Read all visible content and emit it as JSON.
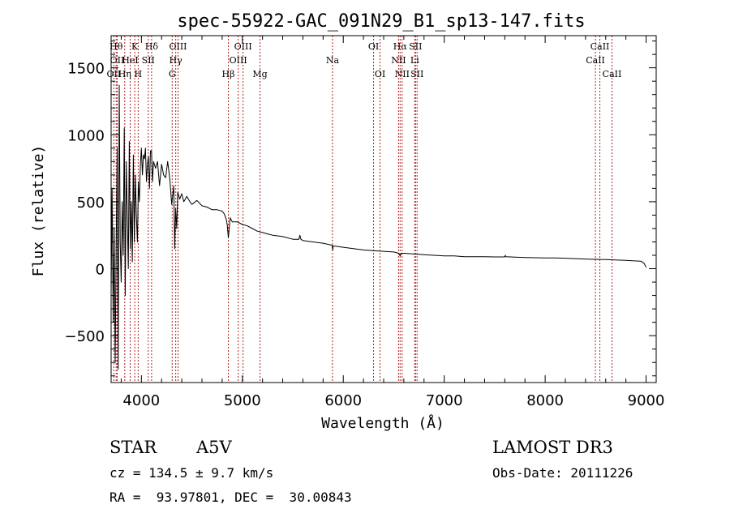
{
  "chart_data": {
    "type": "line",
    "title": "spec-55922-GAC_091N29_B1_sp13-147.fits",
    "xlabel": "Wavelength (Å)",
    "ylabel": "Flux (relative)",
    "xlim": [
      3700,
      9100
    ],
    "ylim": [
      -850,
      1740
    ],
    "xticks": [
      4000,
      5000,
      6000,
      7000,
      8000,
      9000
    ],
    "xtick_labels": [
      "4000",
      "5000",
      "6000",
      "7000",
      "8000",
      "9000"
    ],
    "yticks": [
      -500,
      0,
      500,
      1000,
      1500
    ],
    "ytick_labels": [
      "−500",
      "0",
      "500",
      "1000",
      "1500"
    ],
    "grid": false,
    "series": [
      {
        "name": "spectrum",
        "x": [
          3700,
          3710,
          3720,
          3730,
          3740,
          3750,
          3760,
          3770,
          3780,
          3790,
          3800,
          3810,
          3820,
          3830,
          3840,
          3850,
          3860,
          3870,
          3880,
          3890,
          3900,
          3910,
          3920,
          3930,
          3940,
          3950,
          3960,
          3970,
          3980,
          3990,
          4000,
          4010,
          4020,
          4030,
          4040,
          4050,
          4060,
          4070,
          4080,
          4090,
          4100,
          4110,
          4120,
          4140,
          4160,
          4180,
          4200,
          4220,
          4240,
          4260,
          4280,
          4300,
          4320,
          4330,
          4340,
          4350,
          4360,
          4380,
          4400,
          4420,
          4450,
          4480,
          4500,
          4550,
          4600,
          4650,
          4700,
          4750,
          4800,
          4820,
          4840,
          4850,
          4861,
          4870,
          4880,
          4900,
          4950,
          5000,
          5050,
          5100,
          5150,
          5200,
          5250,
          5300,
          5400,
          5500,
          5560,
          5570,
          5580,
          5600,
          5700,
          5800,
          5890,
          5895,
          5900,
          6000,
          6100,
          6200,
          6300,
          6400,
          6500,
          6550,
          6563,
          6575,
          6600,
          6700,
          6800,
          6900,
          7000,
          7100,
          7200,
          7300,
          7400,
          7500,
          7600,
          7605,
          7610,
          7700,
          7800,
          7900,
          8000,
          8100,
          8200,
          8300,
          8400,
          8500,
          8600,
          8700,
          8800,
          8900,
          8950,
          8980,
          9000
        ],
        "values": [
          -180,
          600,
          -400,
          300,
          -700,
          150,
          900,
          -750,
          1370,
          200,
          -100,
          500,
          100,
          1050,
          -200,
          800,
          400,
          0,
          950,
          150,
          500,
          50,
          850,
          200,
          700,
          400,
          200,
          650,
          500,
          780,
          900,
          700,
          850,
          820,
          900,
          650,
          780,
          840,
          600,
          880,
          880,
          650,
          800,
          750,
          800,
          620,
          780,
          700,
          680,
          800,
          680,
          480,
          620,
          150,
          450,
          300,
          570,
          520,
          560,
          500,
          540,
          500,
          480,
          510,
          470,
          460,
          440,
          440,
          430,
          410,
          370,
          330,
          230,
          300,
          380,
          350,
          350,
          330,
          320,
          300,
          280,
          270,
          260,
          250,
          240,
          220,
          220,
          250,
          220,
          210,
          200,
          190,
          175,
          140,
          170,
          160,
          150,
          140,
          135,
          130,
          125,
          115,
          95,
          115,
          115,
          110,
          105,
          100,
          95,
          95,
          90,
          90,
          90,
          88,
          88,
          100,
          90,
          86,
          84,
          82,
          80,
          80,
          78,
          75,
          72,
          70,
          68,
          65,
          62,
          58,
          56,
          40,
          10
        ]
      }
    ],
    "lines": [
      {
        "name": "OII",
        "x": 3727,
        "row": 3
      },
      {
        "name": "Hθ",
        "x": 3750,
        "row": 1
      },
      {
        "name": "OII",
        "x": 3760,
        "row": 2
      },
      {
        "name": "Hη",
        "x": 3835,
        "row": 3
      },
      {
        "name": "HeI",
        "x": 3889,
        "row": 2
      },
      {
        "name": "K",
        "x": 3934,
        "row": 1
      },
      {
        "name": "H",
        "x": 3968,
        "row": 3
      },
      {
        "name": "SII",
        "x": 4068,
        "row": 2
      },
      {
        "name": "Hδ",
        "x": 4101,
        "row": 1
      },
      {
        "name": "G",
        "x": 4305,
        "row": 3
      },
      {
        "name": "Hγ",
        "x": 4340,
        "row": 2
      },
      {
        "name": "OIII",
        "x": 4363,
        "row": 1
      },
      {
        "name": "Hβ",
        "x": 4861,
        "row": 3
      },
      {
        "name": "OIII",
        "x": 4959,
        "row": 2
      },
      {
        "name": "OIII",
        "x": 5007,
        "row": 1
      },
      {
        "name": "Mg",
        "x": 5175,
        "row": 3
      },
      {
        "name": "Na",
        "x": 5893,
        "row": 2
      },
      {
        "name": "OI",
        "x": 6300,
        "row": 1
      },
      {
        "name": "OI",
        "x": 6364,
        "row": 3
      },
      {
        "name": "NII",
        "x": 6548,
        "row": 2
      },
      {
        "name": "Hα",
        "x": 6563,
        "row": 1
      },
      {
        "name": "NII",
        "x": 6583,
        "row": 3
      },
      {
        "name": "Li",
        "x": 6708,
        "row": 2
      },
      {
        "name": "SII",
        "x": 6716,
        "row": 1
      },
      {
        "name": "SII",
        "x": 6731,
        "row": 3
      },
      {
        "name": "CaII",
        "x": 8498,
        "row": 2
      },
      {
        "name": "CaII",
        "x": 8542,
        "row": 1
      },
      {
        "name": "CaII",
        "x": 8662,
        "row": 3
      }
    ]
  },
  "info": {
    "obj_class": "STAR",
    "subclass": "A5V",
    "survey": "LAMOST DR3",
    "cz": "cz = 134.5 ± 9.7 km/s",
    "obs_date": "Obs-Date: 20111226",
    "radec": "RA =  93.97801, DEC =  30.00843"
  },
  "colors": {
    "axis": "#000000",
    "spectrum": "#000000",
    "line_marker": "#b22222"
  }
}
